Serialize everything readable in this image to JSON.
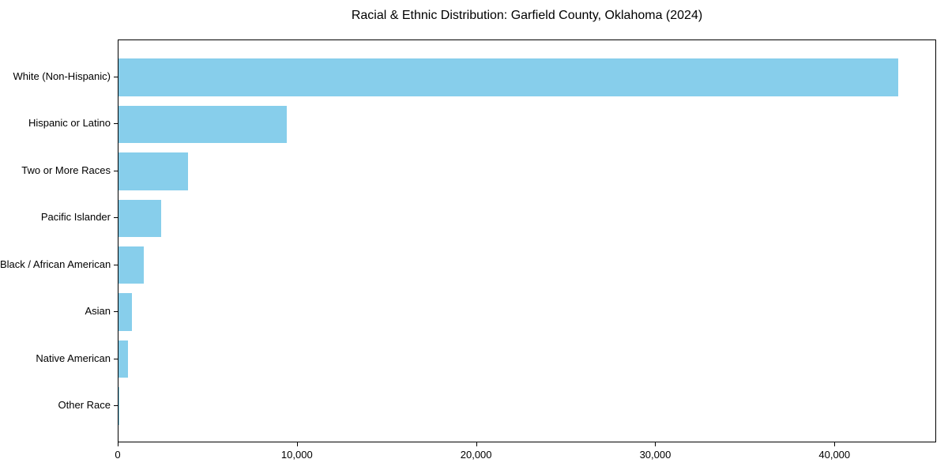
{
  "title": "Racial & Ethnic Distribution: Garfield County, Oklahoma (2024)",
  "colors": {
    "bar": "#87CEEB",
    "axis": "#000000",
    "text": "#000000",
    "background": "#ffffff"
  },
  "chart_data": {
    "type": "bar",
    "orientation": "horizontal",
    "title": "Racial & Ethnic Distribution: Garfield County, Oklahoma (2024)",
    "xlabel": "",
    "ylabel": "",
    "categories": [
      "White (Non-Hispanic)",
      "Hispanic or Latino",
      "Two or More Races",
      "Pacific Islander",
      "Black / African American",
      "Asian",
      "Native American",
      "Other Race"
    ],
    "values": [
      43500,
      9400,
      3900,
      2400,
      1400,
      750,
      530,
      30
    ],
    "xlim": [
      0,
      45675
    ],
    "x_ticks": [
      0,
      10000,
      20000,
      30000,
      40000
    ],
    "x_tick_labels": [
      "0",
      "10,000",
      "20,000",
      "30,000",
      "40,000"
    ],
    "bar_color": "#87CEEB",
    "grid": false,
    "legend": null
  }
}
